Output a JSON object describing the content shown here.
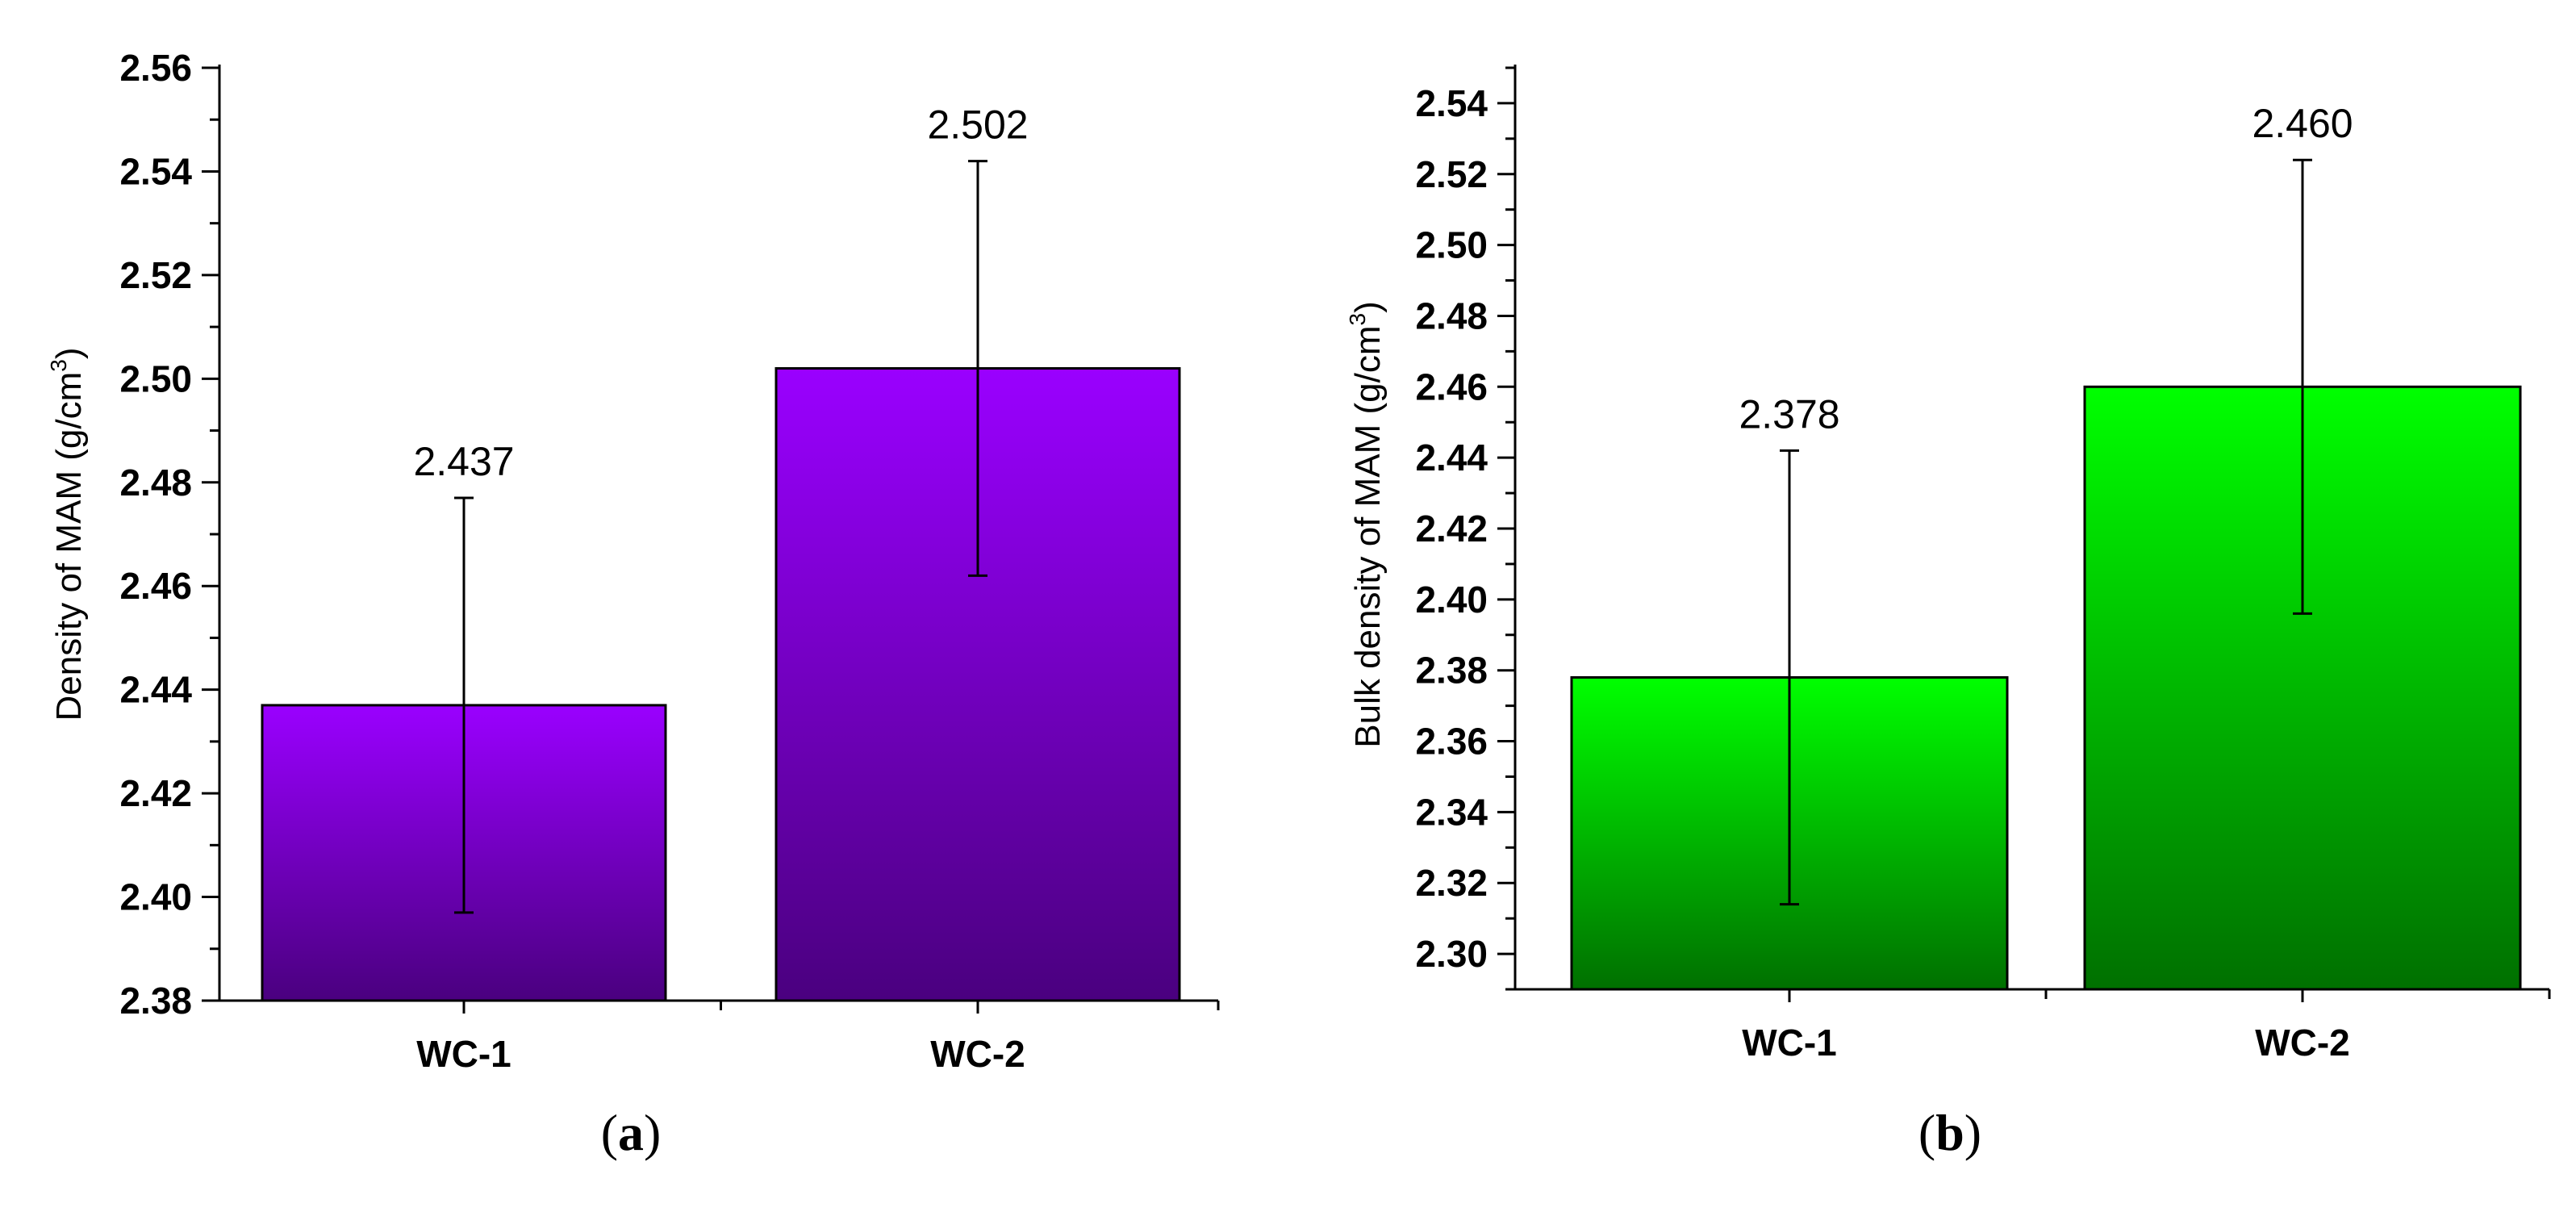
{
  "figure": {
    "panels": [
      {
        "label_open": "(",
        "label_letter": "a",
        "label_close": ")"
      },
      {
        "label_open": "(",
        "label_letter": "b",
        "label_close": ")"
      }
    ]
  },
  "chart_data": [
    {
      "type": "bar",
      "categories": [
        "WC-1",
        "WC-2"
      ],
      "values": [
        2.437,
        2.502
      ],
      "errors": [
        0.04,
        0.04
      ],
      "value_labels": [
        "2.437",
        "2.502"
      ],
      "title": "",
      "xlabel": "",
      "ylabel": "Density of MAM (g/cm",
      "ylabel_superscript": "3",
      "ylabel_close": ")",
      "ylim": [
        2.38,
        2.56
      ],
      "yticks": [
        "2.38",
        "2.40",
        "2.42",
        "2.44",
        "2.46",
        "2.48",
        "2.50",
        "2.52",
        "2.54",
        "2.56"
      ],
      "grid": false,
      "legend": "none",
      "colors": {
        "bar_top": "#9a00ff",
        "bar_bottom": "#4a007f",
        "error_bar": "#000000"
      }
    },
    {
      "type": "bar",
      "categories": [
        "WC-1",
        "WC-2"
      ],
      "values": [
        2.378,
        2.46
      ],
      "errors": [
        0.064,
        0.064
      ],
      "value_labels": [
        "2.378",
        "2.460"
      ],
      "title": "",
      "xlabel": "",
      "ylabel": "Bulk density of MAM (g/cm",
      "ylabel_superscript": "3",
      "ylabel_close": ")",
      "ylim": [
        2.29,
        2.55
      ],
      "yticks": [
        "2.30",
        "2.32",
        "2.34",
        "2.36",
        "2.38",
        "2.40",
        "2.42",
        "2.44",
        "2.46",
        "2.48",
        "2.50",
        "2.52",
        "2.54"
      ],
      "grid": false,
      "legend": "none",
      "colors": {
        "bar_top": "#00ff00",
        "bar_bottom": "#007000",
        "error_bar": "#000000"
      }
    }
  ]
}
